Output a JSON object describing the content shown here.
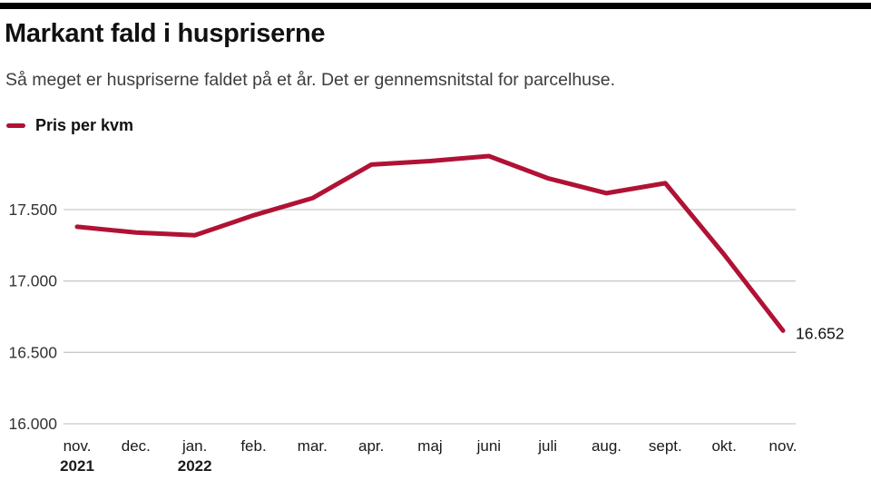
{
  "page": {
    "title": "Markant fald i huspriserne",
    "subtitle": "Så meget er huspriserne faldet på et år. Det er gennemsnitstal for parcelhuse."
  },
  "legend": {
    "label": "Pris per kvm",
    "swatch_color": "#b01235"
  },
  "colors": {
    "top_bar": "#000000",
    "line": "#b01235",
    "gridline": "#c9c9c9",
    "axis_text": "#333333",
    "month_text": "#1a1a1a",
    "end_label_text": "#111111"
  },
  "chart_data": {
    "type": "line",
    "title": "Markant fald i huspriserne",
    "subtitle": "Så meget er huspriserne faldet på et år. Det er gennemsnitstal for parcelhuse.",
    "categories": [
      "nov.",
      "dec.",
      "jan.",
      "feb.",
      "mar.",
      "apr.",
      "maj",
      "juni",
      "juli",
      "aug.",
      "sept.",
      "okt.",
      "nov."
    ],
    "category_year_labels": [
      "2021",
      "",
      "2022",
      "",
      "",
      "",
      "",
      "",
      "",
      "",
      "",
      "",
      ""
    ],
    "series": [
      {
        "name": "Pris per kvm",
        "color": "#b01235",
        "values": [
          17380,
          17340,
          17320,
          17460,
          17580,
          17815,
          17840,
          17875,
          17720,
          17615,
          17685,
          17185,
          16652
        ]
      }
    ],
    "yticks": [
      {
        "value": 17500,
        "label": "17.500"
      },
      {
        "value": 17000,
        "label": "17.000"
      },
      {
        "value": 16500,
        "label": "16.500"
      },
      {
        "value": 16000,
        "label": "16.000"
      }
    ],
    "ylim": [
      16000,
      17900
    ],
    "xlabel": "",
    "ylabel": "",
    "end_label": "16.652",
    "grid": true,
    "legend_position": "top-left"
  }
}
